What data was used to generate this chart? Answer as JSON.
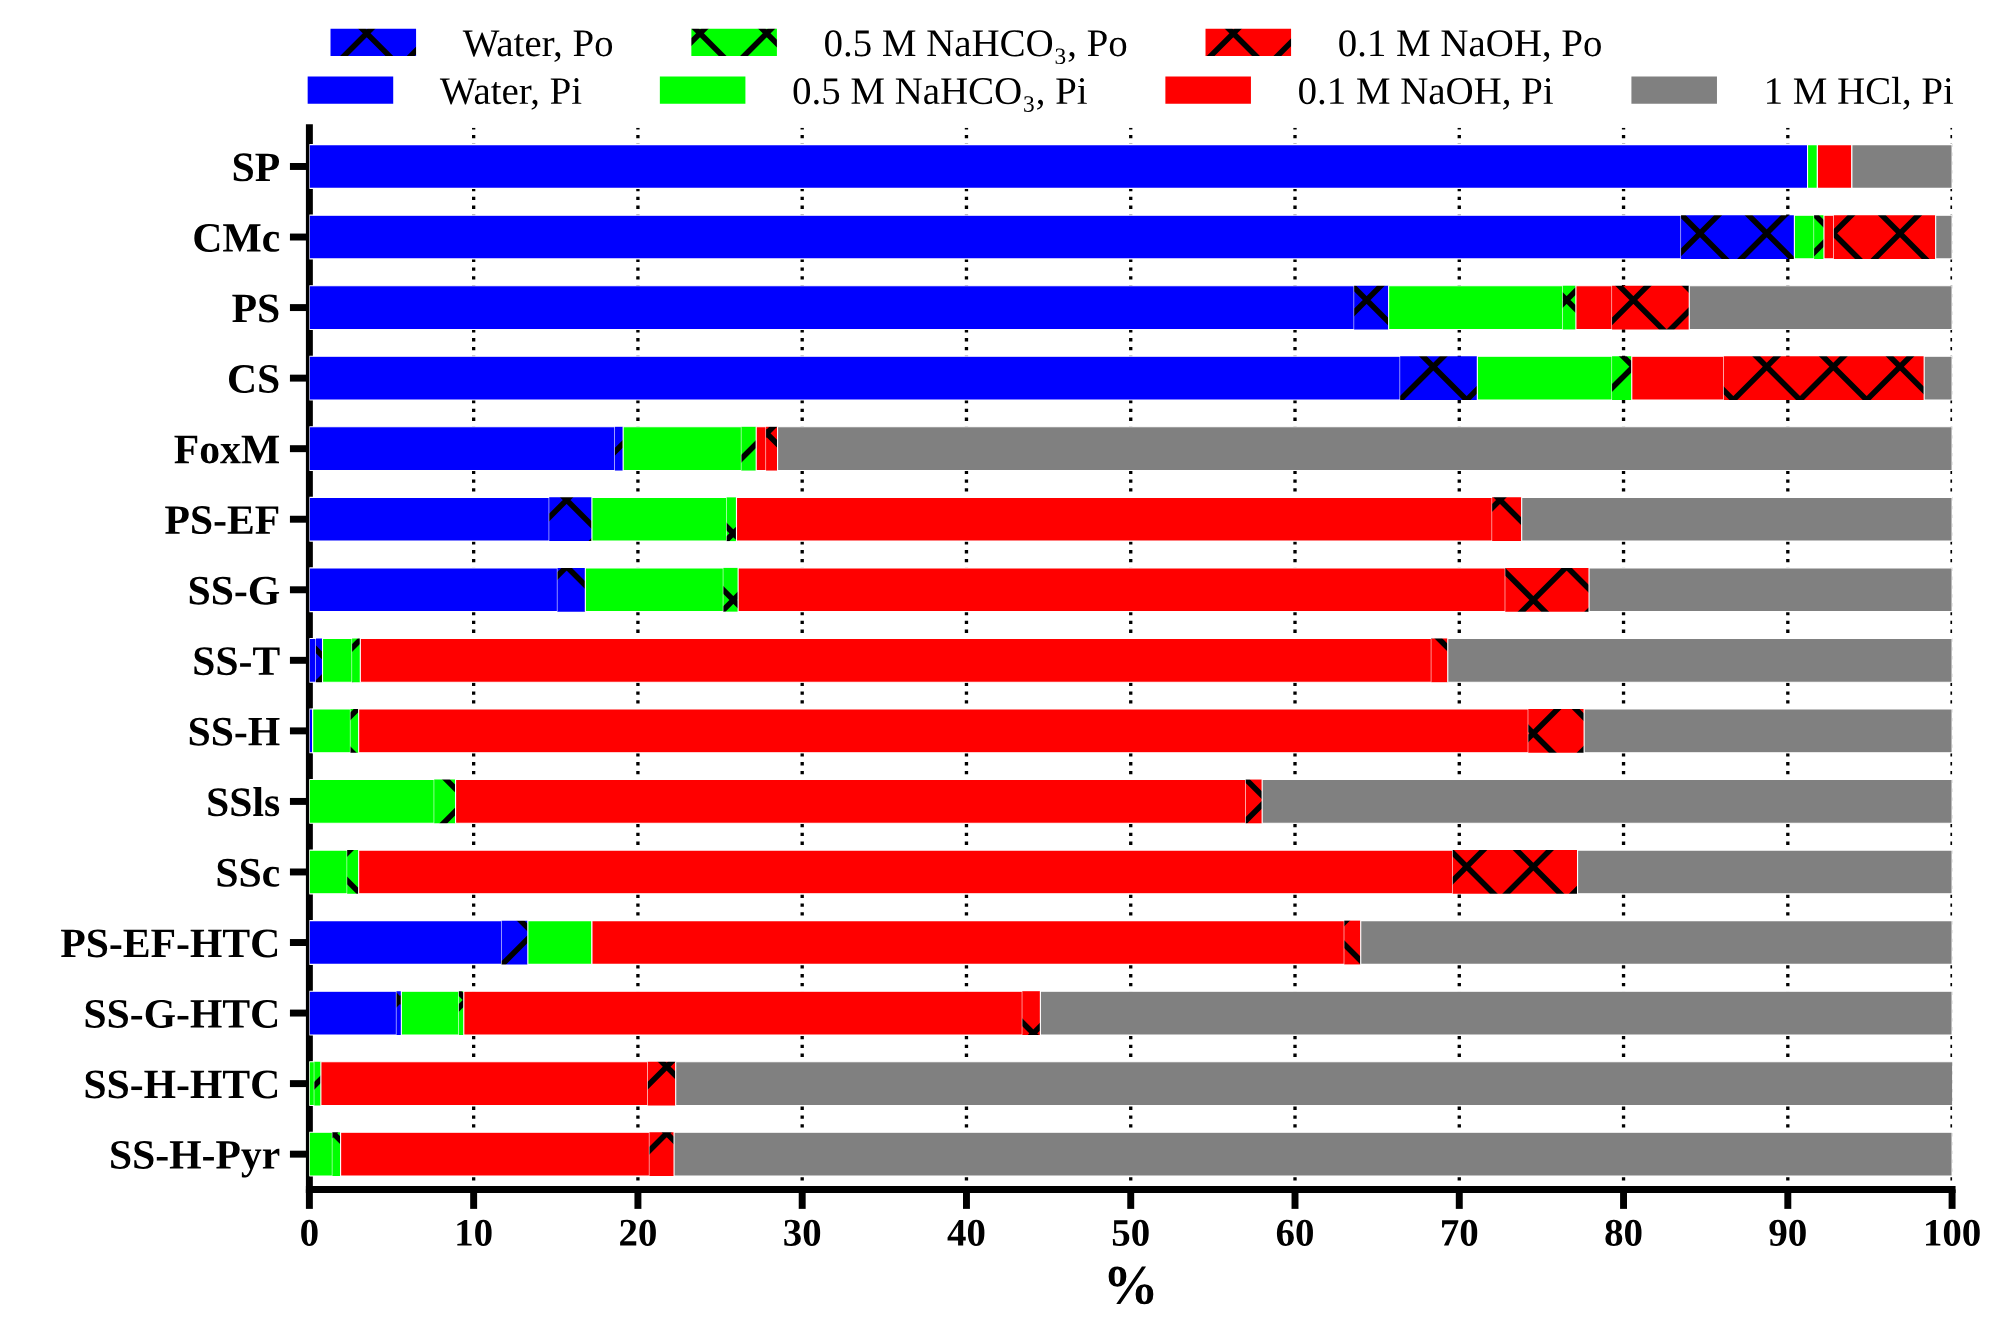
{
  "chart_data": {
    "type": "bar",
    "orientation": "horizontal",
    "stacked": true,
    "xlabel": "%",
    "categories": [
      "SP",
      "CMc",
      "PS",
      "CS",
      "FoxM",
      "PS-EF",
      "SS-G",
      "SS-T",
      "SS-H",
      "SSls",
      "SSc",
      "PS-EF-HTC",
      "SS-G-HTC",
      "SS-H-HTC",
      "SS-H-Pyr"
    ],
    "series": [
      {
        "name": "Water, Pi",
        "color": "#0000ff",
        "values": [
          91.2,
          83.5,
          63.6,
          66.4,
          18.6,
          14.6,
          15.1,
          0.4,
          0.2,
          0,
          0,
          11.7,
          5.3,
          0,
          0
        ]
      },
      {
        "name": "Water, Po",
        "color": "#0000ff",
        "values": [
          0,
          6.9,
          2.1,
          4.7,
          0.5,
          2.6,
          1.7,
          0.4,
          0,
          0,
          0,
          1.6,
          0.3,
          0,
          0
        ]
      },
      {
        "name": "0.5 M NaHCO₃, Pi",
        "color": "#00ff00",
        "values": [
          0.6,
          1.2,
          10.6,
          8.2,
          7.2,
          8.2,
          8.4,
          1.8,
          2.3,
          7.6,
          2.3,
          3.9,
          3.5,
          0.3,
          1.4
        ]
      },
      {
        "name": "0.5 M NaHCO₃, Po",
        "color": "#00ff00",
        "values": [
          0,
          0.6,
          0.8,
          1.2,
          0.9,
          0.6,
          0.9,
          0.5,
          0.5,
          1.3,
          0.7,
          0,
          0.3,
          0.4,
          0.5
        ]
      },
      {
        "name": "0.1 M NaOH, Pi",
        "color": "#ff0000",
        "values": [
          2.1,
          0.6,
          2.2,
          5.6,
          0.6,
          46.0,
          46.7,
          65.2,
          71.2,
          48.1,
          66.6,
          45.8,
          34.0,
          19.9,
          18.8
        ]
      },
      {
        "name": "0.1 M NaOH, Po",
        "color": "#ff0000",
        "values": [
          0,
          6.2,
          4.7,
          12.2,
          0.7,
          1.8,
          5.1,
          1.0,
          3.4,
          1.0,
          7.6,
          1.0,
          1.1,
          1.7,
          1.5
        ]
      },
      {
        "name": "1 M HCl, Pi",
        "color": "#808080",
        "values": [
          6.1,
          1.0,
          16.0,
          1.7,
          71.5,
          26.2,
          22.1,
          30.7,
          22.4,
          42.0,
          22.8,
          36.0,
          55.5,
          77.8,
          77.8
        ]
      }
    ],
    "xlim": [
      0,
      100
    ],
    "xticks": [
      0,
      10,
      20,
      30,
      40,
      50,
      60,
      70,
      80,
      90,
      100
    ],
    "grid": "x",
    "line_style": "dotted",
    "legend": "top"
  }
}
